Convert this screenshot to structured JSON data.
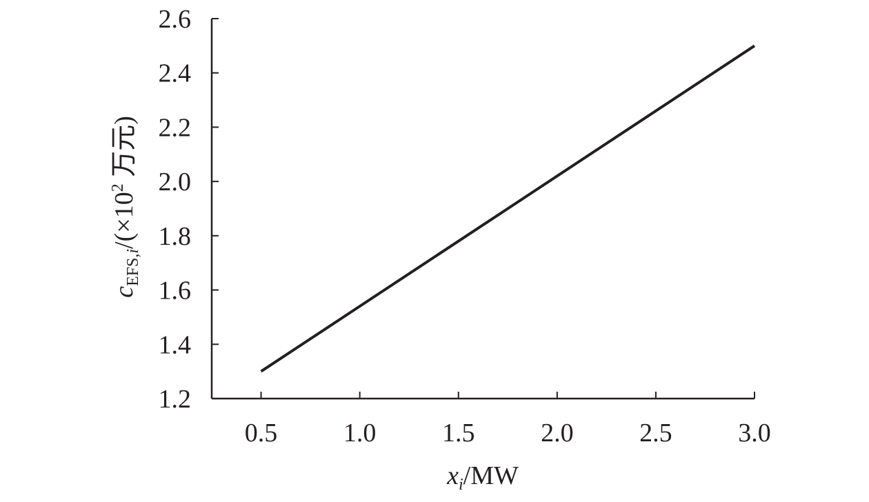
{
  "chart_data": {
    "type": "line",
    "x": [
      0.5,
      3.0
    ],
    "series": [
      {
        "values": [
          1.3,
          2.5
        ]
      }
    ],
    "xlim": [
      0.25,
      3.0
    ],
    "ylim": [
      1.2,
      2.6
    ],
    "xticks": [
      "0.5",
      "1.0",
      "1.5",
      "2.0",
      "2.5",
      "3.0"
    ],
    "yticks": [
      "1.2",
      "1.4",
      "1.6",
      "1.8",
      "2.0",
      "2.2",
      "2.4",
      "2.6"
    ],
    "xlabel": {
      "var": "x",
      "sub": "i",
      "unit": "/MW"
    },
    "ylabel": {
      "var": "c",
      "sub": "EFS,",
      "sub_it": "i",
      "pre": "/(×10",
      "sup": "2",
      "unit": " 万元)"
    },
    "grid": false,
    "line_color": "#231f20"
  }
}
